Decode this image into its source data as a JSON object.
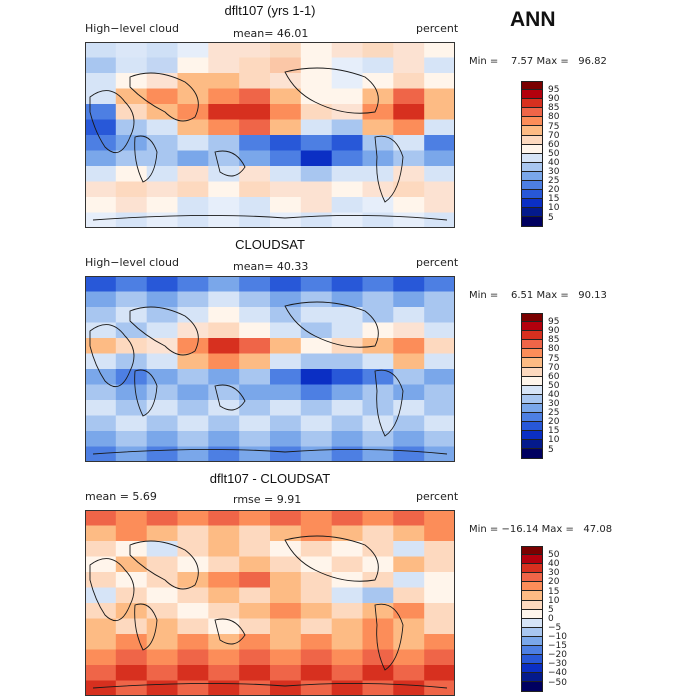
{
  "season": "ANN",
  "chart_data": [
    {
      "type": "heatmap",
      "title": "dflt107 (yrs 1-1)",
      "left_label": "High−level cloud",
      "center_label": "mean=  46.01",
      "right_label": "percent",
      "stats": "Min =    7.57 Max =   96.82",
      "colorbar": {
        "levels": [
          "95",
          "90",
          "85",
          "80",
          "75",
          "70",
          "60",
          "50",
          "40",
          "30",
          "25",
          "20",
          "15",
          "10",
          "5"
        ],
        "colors": [
          "#7a0000",
          "#b3000d",
          "#d7301f",
          "#ef6548",
          "#fc8d59",
          "#fdbb84",
          "#fdd9bf",
          "#fff5eb",
          "#d6e4f7",
          "#a8c6f0",
          "#7aa7ea",
          "#4d7fe3",
          "#2858d8",
          "#0b2fc4",
          "#041a8c",
          "#000060"
        ]
      },
      "bands": [
        [
          "#cfe0f6",
          "#dbe7f8",
          "#cfe0f6",
          "#e6eefa",
          "#fce2d2",
          "#fce2d2",
          "#fbd9bf",
          "#fff5eb",
          "#fce2d2",
          "#fbd9bf",
          "#fce2d2",
          "#fff5eb"
        ],
        [
          "#a8c6f0",
          "#d6e4f7",
          "#c2d6f3",
          "#fff5eb",
          "#fce2d2",
          "#fdd9bf",
          "#fbc7a7",
          "#fff5eb",
          "#e6eefa",
          "#d6e4f7",
          "#fce2d2",
          "#d6e4f7"
        ],
        [
          "#d6e4f7",
          "#fff5eb",
          "#fce2d2",
          "#fdbb84",
          "#fdbb84",
          "#fdd9bf",
          "#fce2d2",
          "#fff5eb",
          "#e6eefa",
          "#fff5eb",
          "#fdd9bf",
          "#fff5eb"
        ],
        [
          "#d6e4f7",
          "#fdbb84",
          "#fc8d59",
          "#fdbb84",
          "#fc8d59",
          "#ef6548",
          "#fdbb84",
          "#fff5eb",
          "#fff5eb",
          "#fdbb84",
          "#ef6548",
          "#fdbb84"
        ],
        [
          "#4d7fe3",
          "#fdd9bf",
          "#fdbb84",
          "#fc8d59",
          "#d7301f",
          "#d7301f",
          "#fc8d59",
          "#fdd9bf",
          "#fce2d2",
          "#fc8d59",
          "#d7301f",
          "#fdbb84"
        ],
        [
          "#2858d8",
          "#a8c6f0",
          "#d6e4f7",
          "#fdbb84",
          "#fc8d59",
          "#ef6548",
          "#fdbb84",
          "#d6e4f7",
          "#a8c6f0",
          "#fdbb84",
          "#fc8d59",
          "#d6e4f7"
        ],
        [
          "#4d7fe3",
          "#7aa7ea",
          "#a8c6f0",
          "#d6e4f7",
          "#a8c6f0",
          "#4d7fe3",
          "#2858d8",
          "#4d7fe3",
          "#2858d8",
          "#a8c6f0",
          "#d6e4f7",
          "#4d7fe3"
        ],
        [
          "#7aa7ea",
          "#a8c6f0",
          "#a8c6f0",
          "#7aa7ea",
          "#a8c6f0",
          "#7aa7ea",
          "#4d7fe3",
          "#0b2fc4",
          "#4d7fe3",
          "#7aa7ea",
          "#a8c6f0",
          "#7aa7ea"
        ],
        [
          "#d6e4f7",
          "#fff5eb",
          "#d6e4f7",
          "#fce2d2",
          "#d6e4f7",
          "#fce2d2",
          "#d6e4f7",
          "#a8c6f0",
          "#d6e4f7",
          "#d6e4f7",
          "#fce2d2",
          "#d6e4f7"
        ],
        [
          "#fce2d2",
          "#fdd9bf",
          "#fce2d2",
          "#fdd9bf",
          "#fff5eb",
          "#fdd9bf",
          "#fce2d2",
          "#fce2d2",
          "#fff5eb",
          "#fce2d2",
          "#fdd9bf",
          "#fce2d2"
        ],
        [
          "#fff5eb",
          "#fce2d2",
          "#fff5eb",
          "#d6e4f7",
          "#e6eefa",
          "#d6e4f7",
          "#fff5eb",
          "#fce2d2",
          "#d6e4f7",
          "#e6eefa",
          "#fff5eb",
          "#fce2d2"
        ],
        [
          "#e6eefa",
          "#d6e4f7",
          "#e6eefa",
          "#d6e4f7",
          "#e6eefa",
          "#d6e4f7",
          "#e6eefa",
          "#d6e4f7",
          "#e6eefa",
          "#d6e4f7",
          "#e6eefa",
          "#d6e4f7"
        ]
      ]
    },
    {
      "type": "heatmap",
      "title": "CLOUDSAT",
      "left_label": "High−level cloud",
      "center_label": "mean=  40.33",
      "right_label": "percent",
      "stats": "Min =    6.51 Max =   90.13",
      "colorbar": {
        "levels": [
          "95",
          "90",
          "85",
          "80",
          "75",
          "70",
          "60",
          "50",
          "40",
          "30",
          "25",
          "20",
          "15",
          "10",
          "5"
        ],
        "colors": [
          "#7a0000",
          "#b3000d",
          "#d7301f",
          "#ef6548",
          "#fc8d59",
          "#fdbb84",
          "#fdd9bf",
          "#fff5eb",
          "#d6e4f7",
          "#a8c6f0",
          "#7aa7ea",
          "#4d7fe3",
          "#2858d8",
          "#0b2fc4",
          "#041a8c",
          "#000060"
        ]
      },
      "bands": [
        [
          "#2858d8",
          "#4d7fe3",
          "#2858d8",
          "#4d7fe3",
          "#7aa7ea",
          "#4d7fe3",
          "#2858d8",
          "#4d7fe3",
          "#2858d8",
          "#4d7fe3",
          "#2858d8",
          "#4d7fe3"
        ],
        [
          "#7aa7ea",
          "#a8c6f0",
          "#7aa7ea",
          "#a8c6f0",
          "#d6e4f7",
          "#a8c6f0",
          "#7aa7ea",
          "#a8c6f0",
          "#7aa7ea",
          "#a8c6f0",
          "#7aa7ea",
          "#a8c6f0"
        ],
        [
          "#a8c6f0",
          "#d6e4f7",
          "#a8c6f0",
          "#d6e4f7",
          "#fff5eb",
          "#d6e4f7",
          "#a8c6f0",
          "#d6e4f7",
          "#d6e4f7",
          "#a8c6f0",
          "#d6e4f7",
          "#a8c6f0"
        ],
        [
          "#d6e4f7",
          "#a8c6f0",
          "#d6e4f7",
          "#fce2d2",
          "#fdd9bf",
          "#fff5eb",
          "#d6e4f7",
          "#a8c6f0",
          "#d6e4f7",
          "#fff5eb",
          "#fce2d2",
          "#d6e4f7"
        ],
        [
          "#fdbb84",
          "#fdd9bf",
          "#fce2d2",
          "#fc8d59",
          "#d7301f",
          "#ef6548",
          "#fdbb84",
          "#fff5eb",
          "#fdd9bf",
          "#fdbb84",
          "#fc8d59",
          "#fdd9bf"
        ],
        [
          "#d6e4f7",
          "#a8c6f0",
          "#d6e4f7",
          "#fdbb84",
          "#fc8d59",
          "#fdbb84",
          "#d6e4f7",
          "#a8c6f0",
          "#a8c6f0",
          "#d6e4f7",
          "#fdbb84",
          "#d6e4f7"
        ],
        [
          "#7aa7ea",
          "#4d7fe3",
          "#7aa7ea",
          "#a8c6f0",
          "#7aa7ea",
          "#a8c6f0",
          "#4d7fe3",
          "#0b2fc4",
          "#2858d8",
          "#4d7fe3",
          "#a8c6f0",
          "#7aa7ea"
        ],
        [
          "#a8c6f0",
          "#7aa7ea",
          "#a8c6f0",
          "#7aa7ea",
          "#a8c6f0",
          "#7aa7ea",
          "#7aa7ea",
          "#4d7fe3",
          "#7aa7ea",
          "#a8c6f0",
          "#7aa7ea",
          "#a8c6f0"
        ],
        [
          "#d6e4f7",
          "#a8c6f0",
          "#d6e4f7",
          "#a8c6f0",
          "#d6e4f7",
          "#a8c6f0",
          "#d6e4f7",
          "#a8c6f0",
          "#d6e4f7",
          "#a8c6f0",
          "#d6e4f7",
          "#a8c6f0"
        ],
        [
          "#a8c6f0",
          "#d6e4f7",
          "#a8c6f0",
          "#d6e4f7",
          "#a8c6f0",
          "#d6e4f7",
          "#a8c6f0",
          "#d6e4f7",
          "#a8c6f0",
          "#d6e4f7",
          "#a8c6f0",
          "#d6e4f7"
        ],
        [
          "#7aa7ea",
          "#a8c6f0",
          "#7aa7ea",
          "#a8c6f0",
          "#7aa7ea",
          "#a8c6f0",
          "#7aa7ea",
          "#a8c6f0",
          "#7aa7ea",
          "#a8c6f0",
          "#7aa7ea",
          "#a8c6f0"
        ],
        [
          "#4d7fe3",
          "#7aa7ea",
          "#4d7fe3",
          "#7aa7ea",
          "#4d7fe3",
          "#7aa7ea",
          "#4d7fe3",
          "#7aa7ea",
          "#4d7fe3",
          "#7aa7ea",
          "#4d7fe3",
          "#7aa7ea"
        ]
      ]
    },
    {
      "type": "heatmap",
      "title": "dflt107 - CLOUDSAT",
      "left_label": "mean =     5.69",
      "center_label": "rmse =     9.91",
      "right_label": "percent",
      "stats": "Min = −16.14 Max =   47.08",
      "colorbar": {
        "levels": [
          "50",
          "40",
          "30",
          "20",
          "15",
          "10",
          "5",
          "0",
          "−5",
          "−10",
          "−15",
          "−20",
          "−30",
          "−40",
          "−50"
        ],
        "colors": [
          "#7a0000",
          "#b3000d",
          "#d7301f",
          "#ef6548",
          "#fc8d59",
          "#fdbb84",
          "#fdd9bf",
          "#fff5eb",
          "#d6e4f7",
          "#a8c6f0",
          "#7aa7ea",
          "#4d7fe3",
          "#2858d8",
          "#0b2fc4",
          "#041a8c",
          "#000060"
        ]
      },
      "bands": [
        [
          "#ef6548",
          "#fc8d59",
          "#ef6548",
          "#fc8d59",
          "#ef6548",
          "#fc8d59",
          "#ef6548",
          "#fc8d59",
          "#ef6548",
          "#fc8d59",
          "#ef6548",
          "#fc8d59"
        ],
        [
          "#fdbb84",
          "#fc8d59",
          "#fdbb84",
          "#fdd9bf",
          "#fdbb84",
          "#fdd9bf",
          "#fdbb84",
          "#fc8d59",
          "#fdbb84",
          "#fdd9bf",
          "#fdbb84",
          "#fc8d59"
        ],
        [
          "#fdd9bf",
          "#fff5eb",
          "#d6e4f7",
          "#fdd9bf",
          "#fdbb84",
          "#fdd9bf",
          "#fff5eb",
          "#fdd9bf",
          "#fff5eb",
          "#fdd9bf",
          "#d6e4f7",
          "#fdd9bf"
        ],
        [
          "#fff5eb",
          "#fdbb84",
          "#fdd9bf",
          "#fff5eb",
          "#fdd9bf",
          "#fdbb84",
          "#fdd9bf",
          "#fff5eb",
          "#fdd9bf",
          "#fff5eb",
          "#fdbb84",
          "#fdd9bf"
        ],
        [
          "#fdd9bf",
          "#fff5eb",
          "#fdd9bf",
          "#fdbb84",
          "#fc8d59",
          "#ef6548",
          "#fdbb84",
          "#fdd9bf",
          "#fff5eb",
          "#fdd9bf",
          "#d6e4f7",
          "#fff5eb"
        ],
        [
          "#d6e4f7",
          "#fdd9bf",
          "#fff5eb",
          "#fdd9bf",
          "#fdbb84",
          "#fdd9bf",
          "#fdbb84",
          "#fdd9bf",
          "#d6e4f7",
          "#a8c6f0",
          "#fdd9bf",
          "#fff5eb"
        ],
        [
          "#fdd9bf",
          "#fdbb84",
          "#fdd9bf",
          "#fff5eb",
          "#fdd9bf",
          "#fdbb84",
          "#fc8d59",
          "#fdbb84",
          "#fdd9bf",
          "#fdbb84",
          "#fc8d59",
          "#fdd9bf"
        ],
        [
          "#fdbb84",
          "#fdd9bf",
          "#fdbb84",
          "#fdd9bf",
          "#fff5eb",
          "#fdd9bf",
          "#fdbb84",
          "#fdd9bf",
          "#fdbb84",
          "#fc8d59",
          "#fdbb84",
          "#fdd9bf"
        ],
        [
          "#fdbb84",
          "#fc8d59",
          "#fdbb84",
          "#fc8d59",
          "#fdbb84",
          "#fc8d59",
          "#fdbb84",
          "#fc8d59",
          "#fdbb84",
          "#fc8d59",
          "#fdbb84",
          "#fc8d59"
        ],
        [
          "#fc8d59",
          "#ef6548",
          "#fc8d59",
          "#ef6548",
          "#fc8d59",
          "#ef6548",
          "#fc8d59",
          "#ef6548",
          "#fc8d59",
          "#ef6548",
          "#fc8d59",
          "#ef6548"
        ],
        [
          "#ef6548",
          "#d7301f",
          "#ef6548",
          "#d7301f",
          "#ef6548",
          "#d7301f",
          "#ef6548",
          "#d7301f",
          "#ef6548",
          "#d7301f",
          "#ef6548",
          "#d7301f"
        ],
        [
          "#d7301f",
          "#ef6548",
          "#d7301f",
          "#ef6548",
          "#d7301f",
          "#ef6548",
          "#d7301f",
          "#ef6548",
          "#d7301f",
          "#ef6548",
          "#d7301f",
          "#ef6548"
        ]
      ]
    }
  ]
}
